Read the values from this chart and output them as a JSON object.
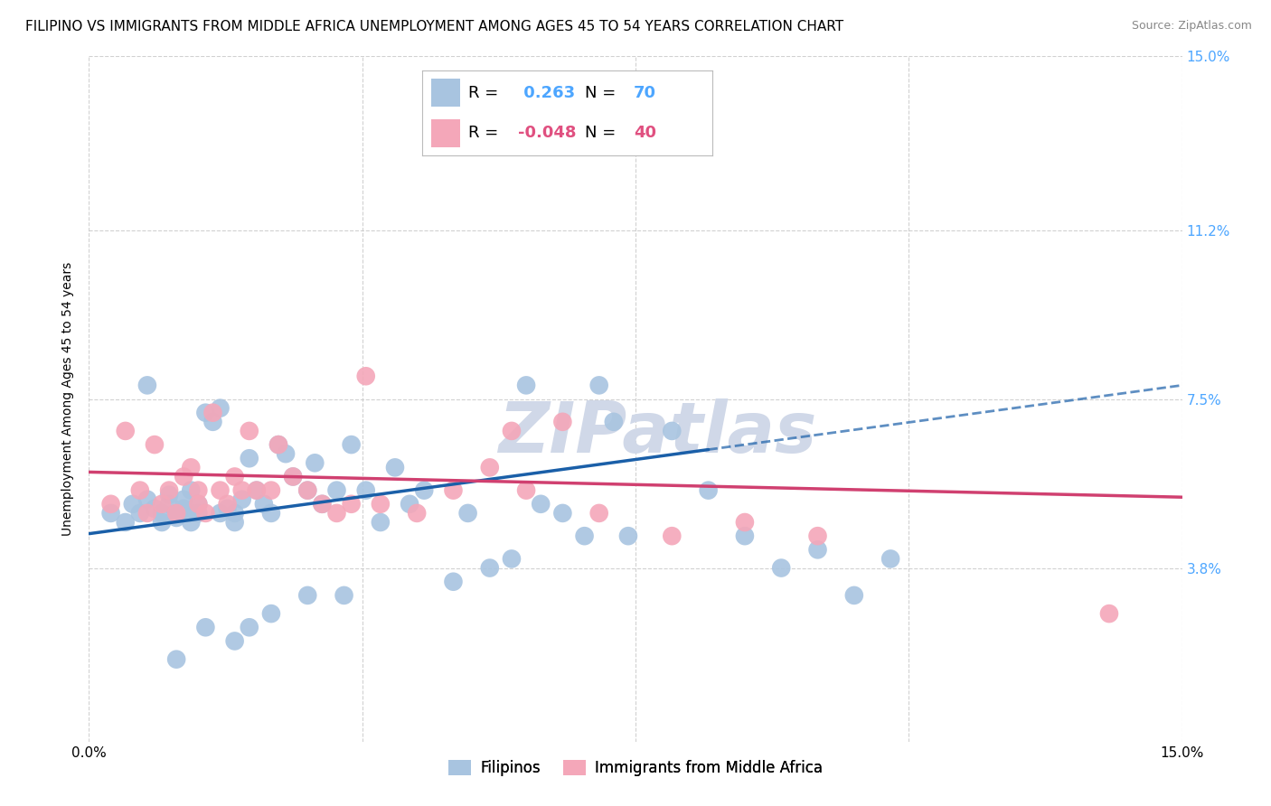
{
  "title": "FILIPINO VS IMMIGRANTS FROM MIDDLE AFRICA UNEMPLOYMENT AMONG AGES 45 TO 54 YEARS CORRELATION CHART",
  "source": "Source: ZipAtlas.com",
  "ylabel": "Unemployment Among Ages 45 to 54 years",
  "xlim": [
    0,
    15
  ],
  "ylim": [
    0,
    15
  ],
  "yticks": [
    3.8,
    7.5,
    11.2,
    15.0
  ],
  "xtick_positions": [
    0,
    3.75,
    7.5,
    11.25,
    15.0
  ],
  "xtick_labels": [
    "0.0%",
    "",
    "",
    "",
    "15.0%"
  ],
  "blue_R": 0.263,
  "blue_N": 70,
  "pink_R": -0.048,
  "pink_N": 40,
  "blue_color": "#a8c4e0",
  "pink_color": "#f4a7b9",
  "blue_line_color": "#1a5fa8",
  "pink_line_color": "#d04070",
  "right_tick_color": "#4da6ff",
  "watermark_color": "#d0d8e8",
  "legend_label_blue": "Filipinos",
  "legend_label_pink": "Immigrants from Middle Africa",
  "blue_R_color": "#4da6ff",
  "pink_R_color": "#e05080",
  "blue_N_color": "#4da6ff",
  "pink_N_color": "#e05080",
  "blue_points_x": [
    0.3,
    0.5,
    0.6,
    0.7,
    0.8,
    0.9,
    1.0,
    1.0,
    1.1,
    1.1,
    1.2,
    1.2,
    1.3,
    1.3,
    1.4,
    1.4,
    1.5,
    1.5,
    1.6,
    1.7,
    1.8,
    1.8,
    1.9,
    2.0,
    2.0,
    2.1,
    2.2,
    2.3,
    2.4,
    2.5,
    2.6,
    2.7,
    2.8,
    3.0,
    3.1,
    3.2,
    3.4,
    3.6,
    3.8,
    4.0,
    4.2,
    4.4,
    4.6,
    5.0,
    5.2,
    5.5,
    5.8,
    6.0,
    6.2,
    6.5,
    6.8,
    7.0,
    7.2,
    7.4,
    8.0,
    8.5,
    9.0,
    9.5,
    10.0,
    10.5,
    11.0,
    1.6,
    1.2,
    2.0,
    2.5,
    3.0,
    0.8,
    1.4,
    2.2,
    3.5
  ],
  "blue_points_y": [
    5.0,
    4.8,
    5.2,
    5.0,
    5.3,
    5.1,
    5.0,
    4.8,
    5.2,
    5.4,
    5.0,
    4.9,
    5.3,
    5.1,
    5.0,
    4.8,
    5.2,
    5.0,
    7.2,
    7.0,
    5.0,
    7.3,
    5.1,
    5.0,
    4.8,
    5.3,
    6.2,
    5.5,
    5.2,
    5.0,
    6.5,
    6.3,
    5.8,
    5.5,
    6.1,
    5.2,
    5.5,
    6.5,
    5.5,
    4.8,
    6.0,
    5.2,
    5.5,
    3.5,
    5.0,
    3.8,
    4.0,
    7.8,
    5.2,
    5.0,
    4.5,
    7.8,
    7.0,
    4.5,
    6.8,
    5.5,
    4.5,
    3.8,
    4.2,
    3.2,
    4.0,
    2.5,
    1.8,
    2.2,
    2.8,
    3.2,
    7.8,
    5.5,
    2.5,
    3.2
  ],
  "pink_points_x": [
    0.3,
    0.5,
    0.7,
    0.8,
    0.9,
    1.0,
    1.1,
    1.2,
    1.3,
    1.4,
    1.5,
    1.6,
    1.7,
    1.8,
    1.9,
    2.0,
    2.1,
    2.2,
    2.3,
    2.5,
    2.6,
    2.8,
    3.0,
    3.2,
    3.4,
    3.8,
    4.0,
    4.5,
    5.0,
    5.5,
    6.0,
    6.5,
    7.0,
    8.0,
    9.0,
    10.0,
    5.8,
    3.6,
    1.5,
    14.0
  ],
  "pink_points_y": [
    5.2,
    6.8,
    5.5,
    5.0,
    6.5,
    5.2,
    5.5,
    5.0,
    5.8,
    6.0,
    5.5,
    5.0,
    7.2,
    5.5,
    5.2,
    5.8,
    5.5,
    6.8,
    5.5,
    5.5,
    6.5,
    5.8,
    5.5,
    5.2,
    5.0,
    8.0,
    5.2,
    5.0,
    5.5,
    6.0,
    5.5,
    7.0,
    5.0,
    4.5,
    4.8,
    4.5,
    6.8,
    5.2,
    5.2,
    2.8
  ],
  "blue_trend_x0": 0,
  "blue_trend_y0": 4.55,
  "blue_trend_x1": 15,
  "blue_trend_y1": 7.8,
  "pink_trend_x0": 0,
  "pink_trend_y0": 5.9,
  "pink_trend_x1": 15,
  "pink_trend_y1": 5.35,
  "blue_dash_x0": 8.5,
  "blue_dash_x1": 15,
  "title_fontsize": 11,
  "source_fontsize": 9,
  "axis_label_fontsize": 10,
  "tick_fontsize": 11,
  "legend_fontsize": 13
}
